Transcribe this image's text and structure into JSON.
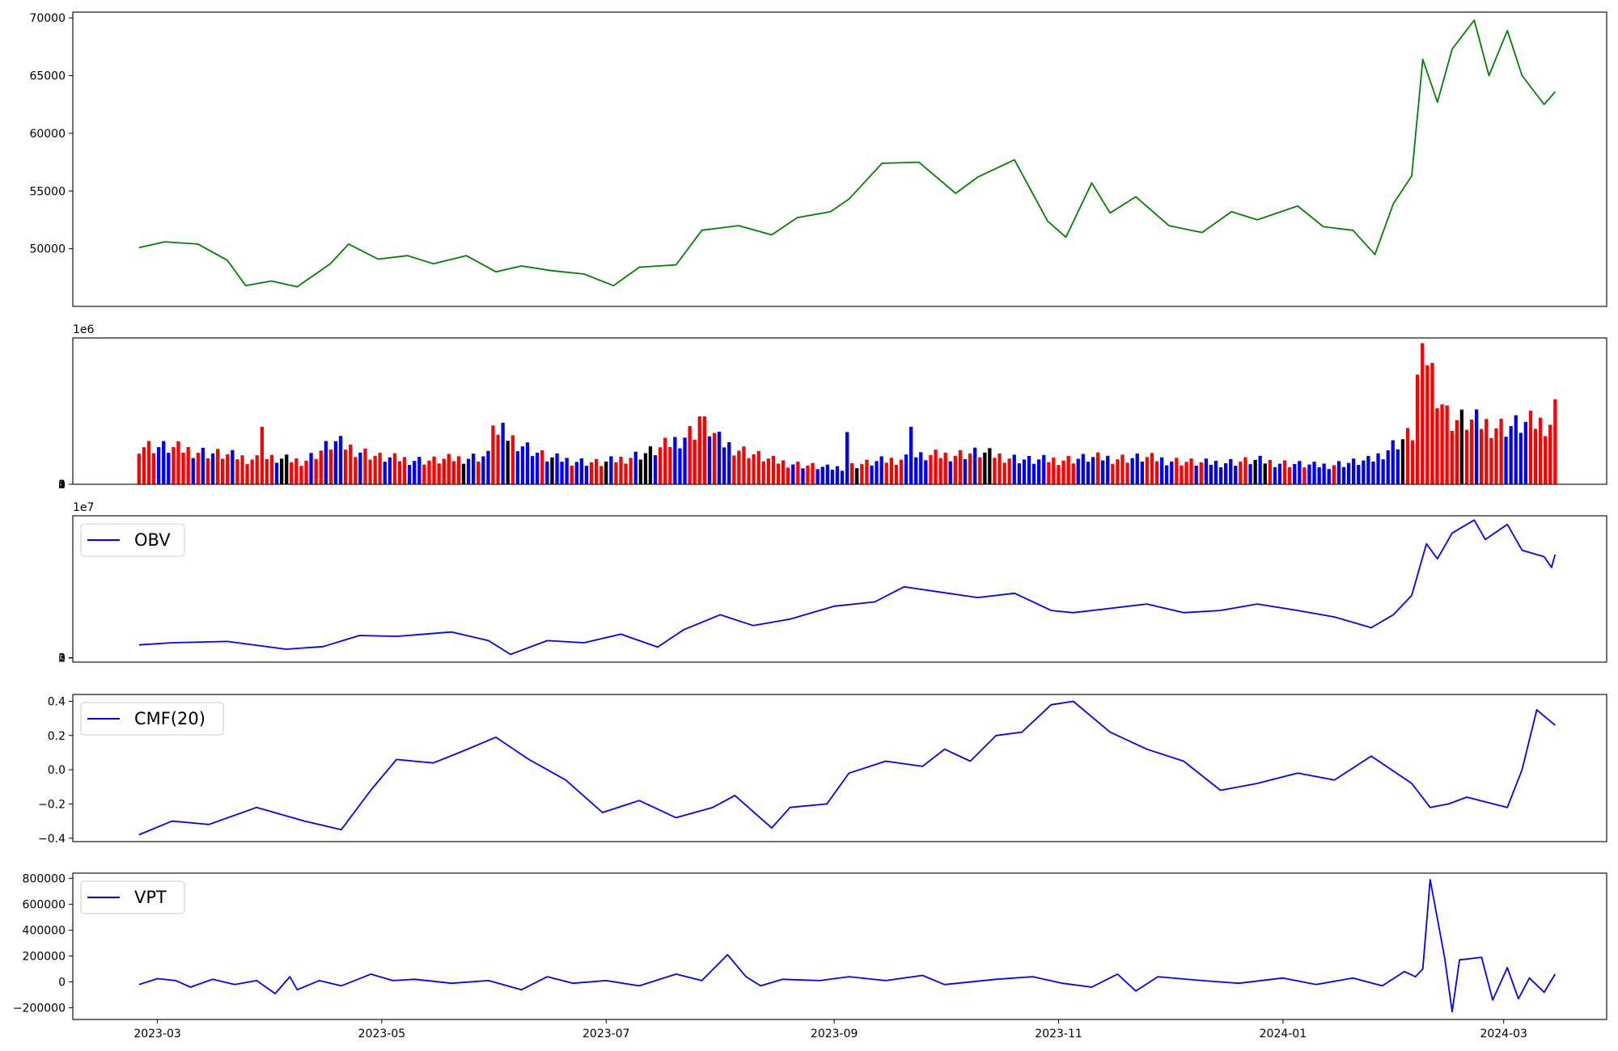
{
  "chart_data": [
    {
      "name": "price",
      "type": "line",
      "color": "#008000",
      "ylim": [
        45000,
        70500
      ],
      "yticks": [
        50000,
        55000,
        60000,
        65000,
        70000
      ],
      "ytick_labels": [
        "50000",
        "55000",
        "60000",
        "65000",
        "70000"
      ],
      "grid": false,
      "points": [
        [
          "2023-02-24",
          50100
        ],
        [
          "2023-03-03",
          50600
        ],
        [
          "2023-03-12",
          50400
        ],
        [
          "2023-03-20",
          49000
        ],
        [
          "2023-03-25",
          46800
        ],
        [
          "2023-04-01",
          47200
        ],
        [
          "2023-04-08",
          46700
        ],
        [
          "2023-04-17",
          48700
        ],
        [
          "2023-04-22",
          50400
        ],
        [
          "2023-04-30",
          49100
        ],
        [
          "2023-05-08",
          49400
        ],
        [
          "2023-05-15",
          48700
        ],
        [
          "2023-05-24",
          49400
        ],
        [
          "2023-06-01",
          48000
        ],
        [
          "2023-06-08",
          48500
        ],
        [
          "2023-06-16",
          48100
        ],
        [
          "2023-06-25",
          47800
        ],
        [
          "2023-07-03",
          46800
        ],
        [
          "2023-07-10",
          48400
        ],
        [
          "2023-07-20",
          48600
        ],
        [
          "2023-07-27",
          51600
        ],
        [
          "2023-08-06",
          52000
        ],
        [
          "2023-08-15",
          51200
        ],
        [
          "2023-08-22",
          52700
        ],
        [
          "2023-08-31",
          53200
        ],
        [
          "2023-09-05",
          54300
        ],
        [
          "2023-09-14",
          57400
        ],
        [
          "2023-09-24",
          57500
        ],
        [
          "2023-10-04",
          54800
        ],
        [
          "2023-10-10",
          56200
        ],
        [
          "2023-10-20",
          57700
        ],
        [
          "2023-10-29",
          52400
        ],
        [
          "2023-11-03",
          51000
        ],
        [
          "2023-11-10",
          55700
        ],
        [
          "2023-11-15",
          53100
        ],
        [
          "2023-11-22",
          54500
        ],
        [
          "2023-12-01",
          52000
        ],
        [
          "2023-12-10",
          51400
        ],
        [
          "2023-12-18",
          53200
        ],
        [
          "2023-12-25",
          52500
        ],
        [
          "2024-01-05",
          53700
        ],
        [
          "2024-01-12",
          51900
        ],
        [
          "2024-01-20",
          51600
        ],
        [
          "2024-01-26",
          49500
        ],
        [
          "2024-01-31",
          53900
        ],
        [
          "2024-02-05",
          56300
        ],
        [
          "2024-02-08",
          66400
        ],
        [
          "2024-02-12",
          62700
        ],
        [
          "2024-02-16",
          67300
        ],
        [
          "2024-02-22",
          69800
        ],
        [
          "2024-02-26",
          65000
        ],
        [
          "2024-03-02",
          68900
        ],
        [
          "2024-03-06",
          65000
        ],
        [
          "2024-03-12",
          62500
        ],
        [
          "2024-03-15",
          63600
        ]
      ]
    },
    {
      "name": "volume",
      "type": "bar",
      "ylim": [
        0,
        5600000
      ],
      "yticks": [
        0,
        1,
        2,
        3,
        4,
        5
      ],
      "ytick_labels": [
        "0",
        "1",
        "2",
        "3",
        "4",
        "5"
      ],
      "offset_text": "1e6",
      "grid": false,
      "colors": {
        "r": "#ff0000",
        "b": "#0000ff",
        "k": "#000000"
      },
      "pattern": "rrrrbbbrrrrbrbrbrrrbrrrrrrrrbkkrrrrbrrbrbbrrrbrrrrbbrrrbbbrrrrrrrrkbbrbbrrbkrbbbbbrbkbbbrbbbrrrkbrrrrbkkkbrrrbbbrrrrbrbbbrrrrrrrrrrrrbrbrrbbbbbbbrkrrbbbrrrrbbbbbrrrrbrrbrbrkkrrrrbbbbbbbrrrrrrbbbbrbbrrrrbbbrrrbbbrrrrbrbbbbbbbrrbkbkrbbrrbbrbbbbbrbbbbbbbbbbbbbkrrrrrrrrrrrkrrbrrrrrbbbbbrrrrrr",
      "volume_profile": [
        [
          "2023-02-24",
          1.5
        ],
        [
          "2023-03-10",
          1.3
        ],
        [
          "2023-03-25",
          1.0
        ],
        [
          "2023-04-10",
          0.9
        ],
        [
          "2023-04-18",
          1.6
        ],
        [
          "2023-05-01",
          1.0
        ],
        [
          "2023-05-15",
          0.9
        ],
        [
          "2023-05-31",
          1.1
        ],
        [
          "2023-06-02",
          2.0
        ],
        [
          "2023-06-15",
          1.0
        ],
        [
          "2023-06-30",
          0.8
        ],
        [
          "2023-07-15",
          1.3
        ],
        [
          "2023-07-28",
          2.3
        ],
        [
          "2023-08-01",
          1.6
        ],
        [
          "2023-08-15",
          0.9
        ],
        [
          "2023-08-31",
          0.6
        ],
        [
          "2023-09-20",
          1.0
        ],
        [
          "2023-10-10",
          1.2
        ],
        [
          "2023-10-25",
          0.9
        ],
        [
          "2023-11-10",
          1.0
        ],
        [
          "2023-11-25",
          1.0
        ],
        [
          "2023-12-10",
          0.8
        ],
        [
          "2023-12-25",
          0.9
        ],
        [
          "2024-01-10",
          0.7
        ],
        [
          "2024-01-25",
          0.9
        ],
        [
          "2024-02-01",
          1.6
        ],
        [
          "2024-02-06",
          2.0
        ],
        [
          "2024-02-08",
          5.4
        ],
        [
          "2024-02-10",
          4.5
        ],
        [
          "2024-02-15",
          2.5
        ],
        [
          "2024-03-01",
          2.2
        ],
        [
          "2024-03-15",
          2.4
        ]
      ],
      "notable_bars": [
        [
          "2023-03-30",
          2.2
        ],
        [
          "2023-05-31",
          2.25
        ],
        [
          "2023-07-27",
          2.6
        ],
        [
          "2023-09-04",
          2.0
        ],
        [
          "2023-09-22",
          2.2
        ],
        [
          "2024-02-07",
          4.2
        ],
        [
          "2024-02-08",
          5.4
        ],
        [
          "2024-02-09",
          4.55
        ],
        [
          "2024-03-15",
          3.25
        ]
      ]
    },
    {
      "name": "obv",
      "type": "line",
      "color": "#0000ff",
      "ylim": [
        -1000000.0,
        33000000.0
      ],
      "yticks": [
        0,
        1,
        2,
        3
      ],
      "ytick_labels": [
        "0",
        "1",
        "2",
        "3"
      ],
      "offset_text": "1e7",
      "legend": "OBV",
      "legend_loc": "upper left",
      "grid": false,
      "points": [
        [
          "2023-02-24",
          3000000
        ],
        [
          "2023-03-05",
          3500000
        ],
        [
          "2023-03-20",
          3800000
        ],
        [
          "2023-04-05",
          2000000
        ],
        [
          "2023-04-15",
          2600000
        ],
        [
          "2023-04-25",
          5200000
        ],
        [
          "2023-05-05",
          5000000
        ],
        [
          "2023-05-20",
          6000000
        ],
        [
          "2023-05-30",
          4000000
        ],
        [
          "2023-06-05",
          800000
        ],
        [
          "2023-06-15",
          4000000
        ],
        [
          "2023-06-25",
          3500000
        ],
        [
          "2023-07-05",
          5500000
        ],
        [
          "2023-07-15",
          2500000
        ],
        [
          "2023-07-22",
          6500000
        ],
        [
          "2023-08-01",
          10000000
        ],
        [
          "2023-08-10",
          7500000
        ],
        [
          "2023-08-20",
          9000000
        ],
        [
          "2023-09-01",
          12000000
        ],
        [
          "2023-09-12",
          13000000
        ],
        [
          "2023-09-20",
          16500000
        ],
        [
          "2023-09-28",
          15500000
        ],
        [
          "2023-10-10",
          14000000
        ],
        [
          "2023-10-20",
          15000000
        ],
        [
          "2023-10-30",
          11000000
        ],
        [
          "2023-11-05",
          10500000
        ],
        [
          "2023-11-15",
          11500000
        ],
        [
          "2023-11-25",
          12500000
        ],
        [
          "2023-12-05",
          10500000
        ],
        [
          "2023-12-15",
          11000000
        ],
        [
          "2023-12-25",
          12500000
        ],
        [
          "2024-01-05",
          11000000
        ],
        [
          "2024-01-15",
          9500000
        ],
        [
          "2024-01-25",
          7000000
        ],
        [
          "2024-01-31",
          10000000
        ],
        [
          "2024-02-05",
          14500000
        ],
        [
          "2024-02-09",
          26500000
        ],
        [
          "2024-02-12",
          23000000
        ],
        [
          "2024-02-16",
          29000000
        ],
        [
          "2024-02-22",
          32000000
        ],
        [
          "2024-02-25",
          27500000
        ],
        [
          "2024-03-02",
          31000000
        ],
        [
          "2024-03-06",
          25000000
        ],
        [
          "2024-03-12",
          23500000
        ],
        [
          "2024-03-14",
          21000000
        ],
        [
          "2024-03-15",
          24000000
        ]
      ]
    },
    {
      "name": "cmf",
      "type": "line",
      "color": "#0000ff",
      "ylim": [
        -0.42,
        0.44
      ],
      "yticks": [
        -0.4,
        -0.2,
        0.0,
        0.2,
        0.4
      ],
      "ytick_labels": [
        "−0.4",
        "−0.2",
        "0.0",
        "0.2",
        "0.4"
      ],
      "legend": "CMF(20)",
      "legend_loc": "upper left",
      "grid": false,
      "points": [
        [
          "2023-02-24",
          -0.38
        ],
        [
          "2023-03-05",
          -0.3
        ],
        [
          "2023-03-15",
          -0.32
        ],
        [
          "2023-03-28",
          -0.22
        ],
        [
          "2023-04-10",
          -0.3
        ],
        [
          "2023-04-20",
          -0.35
        ],
        [
          "2023-04-28",
          -0.12
        ],
        [
          "2023-05-05",
          0.06
        ],
        [
          "2023-05-15",
          0.04
        ],
        [
          "2023-05-22",
          0.1
        ],
        [
          "2023-06-01",
          0.19
        ],
        [
          "2023-06-10",
          0.06
        ],
        [
          "2023-06-20",
          -0.06
        ],
        [
          "2023-06-30",
          -0.25
        ],
        [
          "2023-07-10",
          -0.18
        ],
        [
          "2023-07-20",
          -0.28
        ],
        [
          "2023-07-30",
          -0.22
        ],
        [
          "2023-08-05",
          -0.15
        ],
        [
          "2023-08-15",
          -0.34
        ],
        [
          "2023-08-20",
          -0.22
        ],
        [
          "2023-08-30",
          -0.2
        ],
        [
          "2023-09-05",
          -0.02
        ],
        [
          "2023-09-15",
          0.05
        ],
        [
          "2023-09-25",
          0.02
        ],
        [
          "2023-10-01",
          0.12
        ],
        [
          "2023-10-08",
          0.05
        ],
        [
          "2023-10-15",
          0.2
        ],
        [
          "2023-10-22",
          0.22
        ],
        [
          "2023-10-30",
          0.38
        ],
        [
          "2023-11-05",
          0.4
        ],
        [
          "2023-11-15",
          0.22
        ],
        [
          "2023-11-25",
          0.12
        ],
        [
          "2023-12-05",
          0.05
        ],
        [
          "2023-12-15",
          -0.12
        ],
        [
          "2023-12-25",
          -0.08
        ],
        [
          "2024-01-05",
          -0.02
        ],
        [
          "2024-01-15",
          -0.06
        ],
        [
          "2024-01-25",
          0.08
        ],
        [
          "2024-02-05",
          -0.08
        ],
        [
          "2024-02-10",
          -0.22
        ],
        [
          "2024-02-15",
          -0.2
        ],
        [
          "2024-02-20",
          -0.16
        ],
        [
          "2024-03-02",
          -0.22
        ],
        [
          "2024-03-06",
          0.0
        ],
        [
          "2024-03-10",
          0.35
        ],
        [
          "2024-03-15",
          0.26
        ]
      ]
    },
    {
      "name": "vpt",
      "type": "line",
      "color": "#0000ff",
      "ylim": [
        -290000,
        840000
      ],
      "yticks": [
        -200000,
        0,
        200000,
        400000,
        600000,
        800000
      ],
      "ytick_labels": [
        "−200000",
        "0",
        "200000",
        "400000",
        "600000",
        "800000"
      ],
      "legend": "VPT",
      "legend_loc": "upper left",
      "grid": false,
      "xticks": [
        "2023-03-01",
        "2023-05-01",
        "2023-07-01",
        "2023-09-01",
        "2023-11-01",
        "2024-01-01",
        "2024-03-01"
      ],
      "xtick_labels": [
        "2023-03",
        "2023-05",
        "2023-07",
        "2023-09",
        "2023-11",
        "2024-01",
        "2024-03"
      ],
      "xlim": [
        "2023-02-06",
        "2024-03-29"
      ],
      "points": [
        [
          "2023-02-24",
          -20000
        ],
        [
          "2023-03-01",
          25000
        ],
        [
          "2023-03-06",
          10000
        ],
        [
          "2023-03-10",
          -40000
        ],
        [
          "2023-03-16",
          20000
        ],
        [
          "2023-03-22",
          -20000
        ],
        [
          "2023-03-28",
          10000
        ],
        [
          "2023-04-02",
          -90000
        ],
        [
          "2023-04-06",
          40000
        ],
        [
          "2023-04-08",
          -60000
        ],
        [
          "2023-04-14",
          10000
        ],
        [
          "2023-04-20",
          -30000
        ],
        [
          "2023-04-28",
          60000
        ],
        [
          "2023-05-04",
          10000
        ],
        [
          "2023-05-10",
          20000
        ],
        [
          "2023-05-20",
          -10000
        ],
        [
          "2023-05-30",
          10000
        ],
        [
          "2023-06-08",
          -60000
        ],
        [
          "2023-06-15",
          40000
        ],
        [
          "2023-06-22",
          -10000
        ],
        [
          "2023-07-01",
          10000
        ],
        [
          "2023-07-10",
          -30000
        ],
        [
          "2023-07-20",
          60000
        ],
        [
          "2023-07-27",
          10000
        ],
        [
          "2023-08-03",
          210000
        ],
        [
          "2023-08-08",
          40000
        ],
        [
          "2023-08-12",
          -30000
        ],
        [
          "2023-08-18",
          20000
        ],
        [
          "2023-08-28",
          10000
        ],
        [
          "2023-09-05",
          40000
        ],
        [
          "2023-09-15",
          10000
        ],
        [
          "2023-09-25",
          50000
        ],
        [
          "2023-10-01",
          -20000
        ],
        [
          "2023-10-15",
          20000
        ],
        [
          "2023-10-25",
          40000
        ],
        [
          "2023-11-02",
          -10000
        ],
        [
          "2023-11-10",
          -40000
        ],
        [
          "2023-11-17",
          60000
        ],
        [
          "2023-11-22",
          -70000
        ],
        [
          "2023-11-28",
          40000
        ],
        [
          "2023-12-10",
          10000
        ],
        [
          "2023-12-20",
          -10000
        ],
        [
          "2024-01-01",
          30000
        ],
        [
          "2024-01-10",
          -20000
        ],
        [
          "2024-01-20",
          30000
        ],
        [
          "2024-01-28",
          -30000
        ],
        [
          "2024-02-03",
          80000
        ],
        [
          "2024-02-06",
          40000
        ],
        [
          "2024-02-08",
          100000
        ],
        [
          "2024-02-10",
          790000
        ],
        [
          "2024-02-14",
          180000
        ],
        [
          "2024-02-16",
          -230000
        ],
        [
          "2024-02-18",
          170000
        ],
        [
          "2024-02-24",
          190000
        ],
        [
          "2024-02-27",
          -140000
        ],
        [
          "2024-03-02",
          110000
        ],
        [
          "2024-03-05",
          -130000
        ],
        [
          "2024-03-08",
          30000
        ],
        [
          "2024-03-12",
          -80000
        ],
        [
          "2024-03-15",
          60000
        ]
      ]
    }
  ]
}
